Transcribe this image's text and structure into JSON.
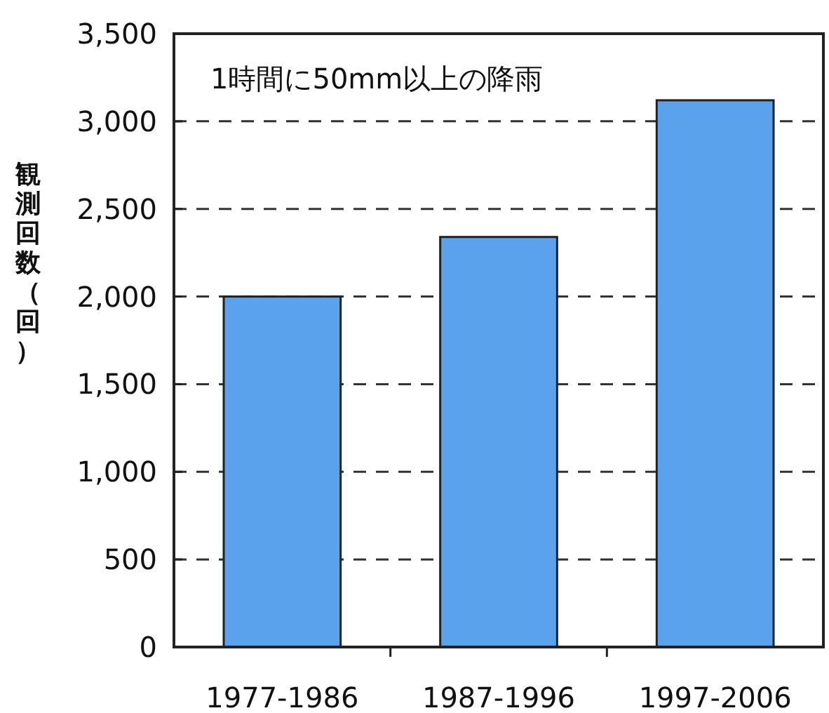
{
  "chart_data": {
    "type": "bar",
    "title": "1時間に50mm以上の降雨",
    "ylabel": "観測回数（回）",
    "categories": [
      "1977-1986",
      "1987-1996",
      "1997-2006"
    ],
    "values": [
      2000,
      2340,
      3120
    ],
    "color": "#5aa2ec",
    "ylim": [
      0,
      3500
    ],
    "yticks": [
      {
        "value": 0,
        "label": "0"
      },
      {
        "value": 500,
        "label": "500"
      },
      {
        "value": 1000,
        "label": "1,000"
      },
      {
        "value": 1500,
        "label": "1,500"
      },
      {
        "value": 2000,
        "label": "2,000"
      },
      {
        "value": 2500,
        "label": "2,500"
      },
      {
        "value": 3000,
        "label": "3,000"
      },
      {
        "value": 3500,
        "label": "3,500"
      }
    ],
    "grid": "y"
  }
}
